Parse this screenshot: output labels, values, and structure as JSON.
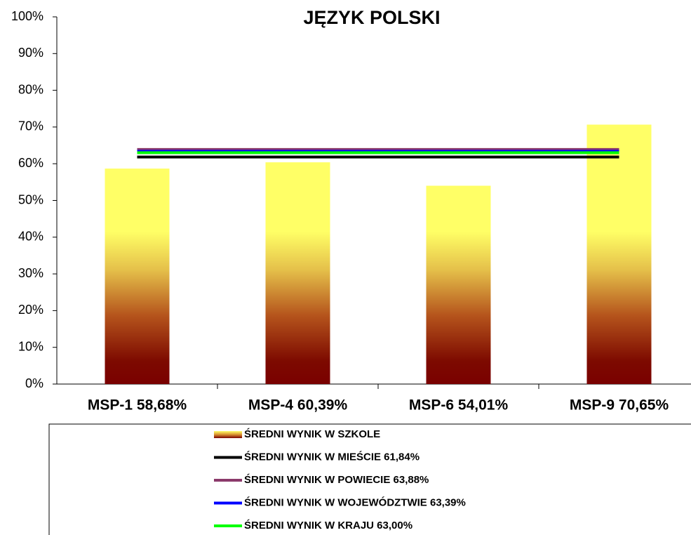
{
  "chart_data": {
    "type": "bar",
    "title": "JĘZYK POLSKI",
    "categories": [
      "MSP-1 58,68%",
      "MSP-4 60,39%",
      "MSP-6 54,01%",
      "MSP-9 70,65%"
    ],
    "series": [
      {
        "name": "ŚREDNI WYNIK W SZKOLE",
        "type": "bar",
        "values": [
          58.68,
          60.39,
          54.01,
          70.65
        ]
      },
      {
        "name": "ŚREDNI WYNIK W MIEŚCIE 61,84%",
        "type": "line",
        "color": "#000000",
        "values": [
          61.84,
          61.84,
          61.84,
          61.84
        ]
      },
      {
        "name": "ŚREDNI WYNIK W POWIECIE 63,88%",
        "type": "line",
        "color": "#8b3a6b",
        "values": [
          63.88,
          63.88,
          63.88,
          63.88
        ]
      },
      {
        "name": "ŚREDNI WYNIK W WOJEWÓDZTWIE 63,39%",
        "type": "line",
        "color": "#0000ff",
        "values": [
          63.39,
          63.39,
          63.39,
          63.39
        ]
      },
      {
        "name": "ŚREDNI WYNIK W KRAJU 63,00%",
        "type": "line",
        "color": "#00ff00",
        "values": [
          63.0,
          63.0,
          63.0,
          63.0
        ]
      }
    ],
    "ylim": [
      0,
      100
    ],
    "yticks": [
      {
        "value": 0,
        "label": "0%"
      },
      {
        "value": 10,
        "label": "10%"
      },
      {
        "value": 20,
        "label": "20%"
      },
      {
        "value": 30,
        "label": "30%"
      },
      {
        "value": 40,
        "label": "40%"
      },
      {
        "value": 50,
        "label": "50%"
      },
      {
        "value": 60,
        "label": "60%"
      },
      {
        "value": 70,
        "label": "70%"
      },
      {
        "value": 80,
        "label": "80%"
      },
      {
        "value": 90,
        "label": "90%"
      },
      {
        "value": 100,
        "label": "100%"
      }
    ],
    "grid": false,
    "legend": "bottom"
  }
}
